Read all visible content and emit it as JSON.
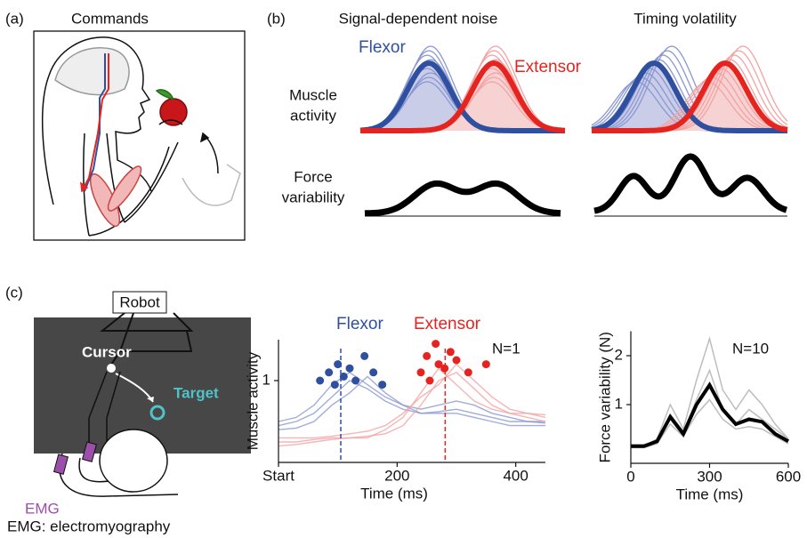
{
  "panel_labels": [
    "(a)",
    "(b)",
    "(c)"
  ],
  "panel_a": {
    "title": "Commands"
  },
  "panel_b": {
    "columns": [
      "Signal-dependent noise",
      "Timing volatility"
    ],
    "legend": [
      "Flexor",
      "Extensor"
    ],
    "row_labels": [
      [
        "Muscle",
        "activity"
      ],
      [
        "Force",
        "variability"
      ]
    ]
  },
  "panel_c": {
    "robot": "Robot",
    "cursor": "Cursor",
    "target": "Target",
    "emg": "EMG",
    "footnote": "EMG: electromyography"
  },
  "chart_data": [
    {
      "type": "line",
      "x_label": "Time (ms)",
      "y_label": "Muscle activity",
      "annotation": "N=1",
      "x": [
        0,
        30,
        60,
        90,
        120,
        150,
        180,
        210,
        240,
        270,
        300,
        330,
        360,
        390,
        420,
        450
      ],
      "xlim": [
        0,
        450
      ],
      "xticks": [
        {
          "value": 0,
          "label": "Start"
        },
        200,
        400
      ],
      "ylim": [
        0,
        1.5
      ],
      "yticks": [
        1
      ],
      "series": [
        {
          "name": "Flexor",
          "color": "#8a97d2",
          "label_color": "#2f4f9f",
          "peak_color": "#2f4f9f",
          "onset": 105,
          "traces": [
            [
              0.45,
              0.5,
              0.6,
              0.8,
              1.0,
              0.9,
              0.75,
              0.65,
              0.6,
              0.62,
              0.65,
              0.6,
              0.55,
              0.5,
              0.5,
              0.48
            ],
            [
              0.4,
              0.42,
              0.5,
              0.7,
              0.85,
              1.05,
              0.85,
              0.7,
              0.65,
              0.7,
              0.75,
              0.7,
              0.6,
              0.55,
              0.5,
              0.5
            ],
            [
              0.5,
              0.55,
              0.7,
              0.95,
              1.1,
              0.95,
              0.8,
              0.7,
              0.6,
              0.6,
              0.6,
              0.55,
              0.5,
              0.45,
              0.45,
              0.45
            ]
          ],
          "peaks": {
            "x": [
              70,
              85,
              95,
              100,
              110,
              120,
              130,
              145,
              160,
              175
            ],
            "y": [
              1.0,
              1.1,
              0.95,
              1.2,
              1.05,
              1.15,
              1.0,
              1.3,
              1.1,
              0.95
            ]
          }
        },
        {
          "name": "Extensor",
          "color": "#f2a3a3",
          "label_color": "#e52420",
          "peak_color": "#e52420",
          "onset": 281,
          "traces": [
            [
              0.25,
              0.25,
              0.28,
              0.3,
              0.3,
              0.32,
              0.35,
              0.45,
              0.7,
              1.0,
              1.1,
              0.9,
              0.7,
              0.6,
              0.55,
              0.5
            ],
            [
              0.2,
              0.22,
              0.25,
              0.28,
              0.3,
              0.3,
              0.4,
              0.55,
              0.85,
              1.15,
              0.95,
              0.75,
              0.65,
              0.6,
              0.6,
              0.55
            ],
            [
              0.3,
              0.3,
              0.3,
              0.32,
              0.35,
              0.38,
              0.45,
              0.6,
              0.8,
              0.95,
              1.2,
              1.0,
              0.8,
              0.65,
              0.6,
              0.58
            ]
          ],
          "peaks": {
            "x": [
              240,
              250,
              255,
              265,
              270,
              280,
              290,
              300,
              320,
              350
            ],
            "y": [
              1.1,
              1.3,
              1.0,
              1.45,
              1.2,
              1.15,
              1.35,
              1.25,
              1.1,
              1.2
            ]
          }
        }
      ]
    },
    {
      "type": "line",
      "x_label": "Time (ms)",
      "y_label": "Force variability (N)",
      "annotation": "N=10",
      "x": [
        0,
        50,
        100,
        150,
        200,
        250,
        300,
        350,
        400,
        450,
        500,
        550,
        600
      ],
      "xlim": [
        0,
        600
      ],
      "xticks": [
        0,
        300,
        600
      ],
      "ylim": [
        -0.2,
        2.5
      ],
      "yticks": [
        1,
        2
      ],
      "series": [
        {
          "color": "#bdbdbd",
          "line_width": 1.5,
          "values": [
            0.15,
            0.15,
            0.3,
            1.0,
            0.5,
            1.5,
            2.35,
            1.3,
            0.9,
            1.3,
            1.0,
            0.6,
            0.3
          ]
        },
        {
          "color": "#bdbdbd",
          "line_width": 1.5,
          "values": [
            0.12,
            0.12,
            0.2,
            0.6,
            0.35,
            0.8,
            1.1,
            0.7,
            0.5,
            0.55,
            0.5,
            0.35,
            0.2
          ]
        },
        {
          "color": "#bdbdbd",
          "line_width": 1.5,
          "values": [
            0.18,
            0.18,
            0.25,
            0.8,
            0.45,
            1.1,
            1.7,
            0.9,
            0.6,
            0.9,
            0.7,
            0.5,
            0.3
          ]
        },
        {
          "color": "#000000",
          "line_width": 4,
          "values": [
            0.15,
            0.15,
            0.25,
            0.75,
            0.4,
            1.0,
            1.4,
            0.9,
            0.6,
            0.7,
            0.65,
            0.4,
            0.25
          ]
        }
      ]
    }
  ]
}
